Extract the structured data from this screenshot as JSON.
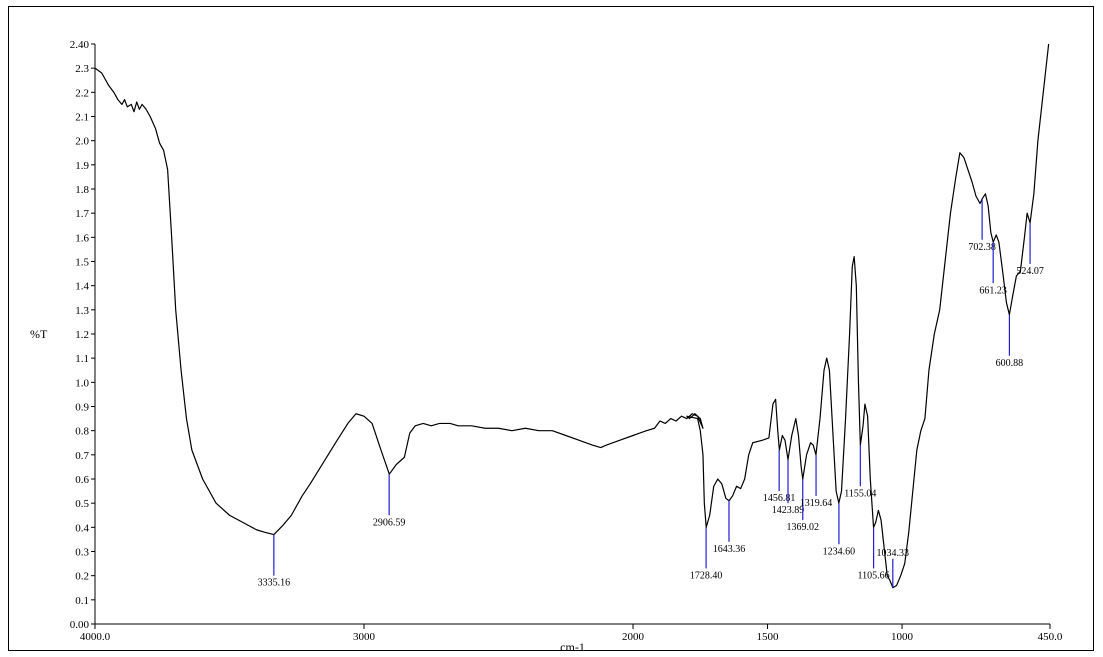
{
  "chart_data": {
    "type": "line",
    "xlabel": "cm-1",
    "ylabel": "%T",
    "xlim": [
      4000,
      450
    ],
    "ylim": [
      0,
      2.4
    ],
    "x_ticks": [
      {
        "value": 4000,
        "label": "4000.0"
      },
      {
        "value": 3000,
        "label": "3000"
      },
      {
        "value": 2000,
        "label": "2000"
      },
      {
        "value": 1500,
        "label": "1500"
      },
      {
        "value": 1000,
        "label": "1000"
      },
      {
        "value": 450,
        "label": "450.0"
      }
    ],
    "y_ticks": [
      {
        "value": 0.0,
        "label": "0.00"
      },
      {
        "value": 0.1,
        "label": "0.1"
      },
      {
        "value": 0.2,
        "label": "0.2"
      },
      {
        "value": 0.3,
        "label": "0.3"
      },
      {
        "value": 0.4,
        "label": "0.4"
      },
      {
        "value": 0.5,
        "label": "0.5"
      },
      {
        "value": 0.6,
        "label": "0.6"
      },
      {
        "value": 0.7,
        "label": "0.7"
      },
      {
        "value": 0.8,
        "label": "0.8"
      },
      {
        "value": 0.9,
        "label": "0.9"
      },
      {
        "value": 1.0,
        "label": "1.0"
      },
      {
        "value": 1.1,
        "label": "1.1"
      },
      {
        "value": 1.2,
        "label": "1.2"
      },
      {
        "value": 1.3,
        "label": "1.3"
      },
      {
        "value": 1.4,
        "label": "1.4"
      },
      {
        "value": 1.5,
        "label": "1.5"
      },
      {
        "value": 1.6,
        "label": "1.6"
      },
      {
        "value": 1.7,
        "label": "1.7"
      },
      {
        "value": 1.8,
        "label": "1.8"
      },
      {
        "value": 1.9,
        "label": "1.9"
      },
      {
        "value": 2.0,
        "label": "2.0"
      },
      {
        "value": 2.1,
        "label": "2.1"
      },
      {
        "value": 2.2,
        "label": "2.2"
      },
      {
        "value": 2.3,
        "label": "2.3"
      },
      {
        "value": 2.4,
        "label": "2.40"
      }
    ],
    "series": [
      {
        "color": "#000000",
        "points": [
          [
            4000,
            2.3
          ],
          [
            3975,
            2.28
          ],
          [
            3950,
            2.23
          ],
          [
            3930,
            2.2
          ],
          [
            3915,
            2.17
          ],
          [
            3900,
            2.15
          ],
          [
            3890,
            2.17
          ],
          [
            3880,
            2.14
          ],
          [
            3865,
            2.15
          ],
          [
            3855,
            2.12
          ],
          [
            3845,
            2.16
          ],
          [
            3835,
            2.13
          ],
          [
            3825,
            2.15
          ],
          [
            3810,
            2.13
          ],
          [
            3795,
            2.1
          ],
          [
            3775,
            2.05
          ],
          [
            3760,
            1.99
          ],
          [
            3745,
            1.96
          ],
          [
            3730,
            1.88
          ],
          [
            3715,
            1.6
          ],
          [
            3700,
            1.3
          ],
          [
            3680,
            1.05
          ],
          [
            3660,
            0.85
          ],
          [
            3640,
            0.72
          ],
          [
            3600,
            0.6
          ],
          [
            3550,
            0.5
          ],
          [
            3500,
            0.45
          ],
          [
            3450,
            0.42
          ],
          [
            3400,
            0.39
          ],
          [
            3370,
            0.38
          ],
          [
            3335,
            0.37
          ],
          [
            3300,
            0.41
          ],
          [
            3270,
            0.45
          ],
          [
            3230,
            0.53
          ],
          [
            3200,
            0.58
          ],
          [
            3150,
            0.67
          ],
          [
            3100,
            0.76
          ],
          [
            3060,
            0.83
          ],
          [
            3030,
            0.87
          ],
          [
            3000,
            0.86
          ],
          [
            2970,
            0.83
          ],
          [
            2940,
            0.73
          ],
          [
            2906,
            0.62
          ],
          [
            2880,
            0.66
          ],
          [
            2850,
            0.69
          ],
          [
            2830,
            0.79
          ],
          [
            2810,
            0.82
          ],
          [
            2780,
            0.83
          ],
          [
            2750,
            0.82
          ],
          [
            2720,
            0.83
          ],
          [
            2680,
            0.83
          ],
          [
            2650,
            0.82
          ],
          [
            2600,
            0.82
          ],
          [
            2550,
            0.81
          ],
          [
            2500,
            0.81
          ],
          [
            2450,
            0.8
          ],
          [
            2400,
            0.81
          ],
          [
            2350,
            0.8
          ],
          [
            2300,
            0.8
          ],
          [
            2250,
            0.78
          ],
          [
            2200,
            0.76
          ],
          [
            2150,
            0.74
          ],
          [
            2120,
            0.73
          ],
          [
            2100,
            0.74
          ],
          [
            2050,
            0.76
          ],
          [
            2000,
            0.78
          ],
          [
            1950,
            0.8
          ],
          [
            1920,
            0.81
          ],
          [
            1900,
            0.84
          ],
          [
            1880,
            0.83
          ],
          [
            1860,
            0.85
          ],
          [
            1840,
            0.84
          ],
          [
            1820,
            0.86
          ],
          [
            1800,
            0.85
          ],
          [
            1780,
            0.87
          ],
          [
            1760,
            0.86
          ],
          [
            1750,
            0.85
          ],
          [
            1740,
            0.81
          ],
          [
            1760,
            0.86
          ],
          [
            1770,
            0.87
          ],
          [
            1780,
            0.86
          ],
          [
            1790,
            0.85
          ],
          [
            1800,
            0.86
          ],
          [
            1760,
            0.85
          ],
          [
            1750,
            0.8
          ],
          [
            1740,
            0.7
          ],
          [
            1735,
            0.5
          ],
          [
            1728,
            0.4
          ],
          [
            1715,
            0.45
          ],
          [
            1700,
            0.57
          ],
          [
            1685,
            0.6
          ],
          [
            1670,
            0.58
          ],
          [
            1655,
            0.52
          ],
          [
            1643,
            0.51
          ],
          [
            1630,
            0.53
          ],
          [
            1615,
            0.57
          ],
          [
            1600,
            0.56
          ],
          [
            1585,
            0.6
          ],
          [
            1570,
            0.7
          ],
          [
            1555,
            0.75
          ],
          [
            1520,
            0.76
          ],
          [
            1495,
            0.77
          ],
          [
            1480,
            0.91
          ],
          [
            1470,
            0.93
          ],
          [
            1462,
            0.8
          ],
          [
            1456,
            0.72
          ],
          [
            1445,
            0.78
          ],
          [
            1435,
            0.76
          ],
          [
            1424,
            0.68
          ],
          [
            1410,
            0.78
          ],
          [
            1395,
            0.85
          ],
          [
            1385,
            0.78
          ],
          [
            1375,
            0.65
          ],
          [
            1369,
            0.6
          ],
          [
            1355,
            0.7
          ],
          [
            1340,
            0.75
          ],
          [
            1330,
            0.74
          ],
          [
            1320,
            0.7
          ],
          [
            1305,
            0.85
          ],
          [
            1290,
            1.05
          ],
          [
            1280,
            1.1
          ],
          [
            1270,
            1.05
          ],
          [
            1255,
            0.75
          ],
          [
            1245,
            0.55
          ],
          [
            1235,
            0.5
          ],
          [
            1225,
            0.55
          ],
          [
            1210,
            0.85
          ],
          [
            1195,
            1.2
          ],
          [
            1185,
            1.48
          ],
          [
            1178,
            1.52
          ],
          [
            1170,
            1.4
          ],
          [
            1162,
            1.0
          ],
          [
            1155,
            0.74
          ],
          [
            1145,
            0.82
          ],
          [
            1138,
            0.91
          ],
          [
            1128,
            0.86
          ],
          [
            1118,
            0.6
          ],
          [
            1106,
            0.4
          ],
          [
            1098,
            0.42
          ],
          [
            1088,
            0.47
          ],
          [
            1078,
            0.43
          ],
          [
            1065,
            0.3
          ],
          [
            1055,
            0.2
          ],
          [
            1045,
            0.18
          ],
          [
            1034,
            0.15
          ],
          [
            1020,
            0.16
          ],
          [
            1005,
            0.2
          ],
          [
            990,
            0.25
          ],
          [
            975,
            0.38
          ],
          [
            960,
            0.55
          ],
          [
            945,
            0.72
          ],
          [
            930,
            0.8
          ],
          [
            915,
            0.85
          ],
          [
            900,
            1.05
          ],
          [
            880,
            1.2
          ],
          [
            860,
            1.3
          ],
          [
            840,
            1.5
          ],
          [
            820,
            1.7
          ],
          [
            800,
            1.85
          ],
          [
            785,
            1.95
          ],
          [
            770,
            1.93
          ],
          [
            755,
            1.88
          ],
          [
            740,
            1.83
          ],
          [
            725,
            1.77
          ],
          [
            710,
            1.74
          ],
          [
            702,
            1.76
          ],
          [
            690,
            1.78
          ],
          [
            680,
            1.73
          ],
          [
            670,
            1.62
          ],
          [
            661,
            1.58
          ],
          [
            650,
            1.61
          ],
          [
            640,
            1.58
          ],
          [
            625,
            1.45
          ],
          [
            612,
            1.33
          ],
          [
            601,
            1.28
          ],
          [
            590,
            1.35
          ],
          [
            575,
            1.44
          ],
          [
            560,
            1.46
          ],
          [
            545,
            1.6
          ],
          [
            535,
            1.7
          ],
          [
            524,
            1.66
          ],
          [
            510,
            1.78
          ],
          [
            495,
            2.0
          ],
          [
            480,
            2.15
          ],
          [
            465,
            2.3
          ],
          [
            455,
            2.4
          ]
        ]
      }
    ],
    "annotations": [
      {
        "x": 3335.16,
        "y": 0.37,
        "label": "3335.16",
        "label_y": 0.2
      },
      {
        "x": 2906.59,
        "y": 0.62,
        "label": "2906.59",
        "label_y": 0.45
      },
      {
        "x": 1728.4,
        "y": 0.4,
        "label": "1728.40",
        "label_y": 0.23
      },
      {
        "x": 1643.36,
        "y": 0.51,
        "label": "1643.36",
        "label_y": 0.34
      },
      {
        "x": 1456.81,
        "y": 0.72,
        "label": "1456.81",
        "label_y": 0.55
      },
      {
        "x": 1423.89,
        "y": 0.68,
        "label": "1423.89",
        "label_y": 0.5
      },
      {
        "x": 1369.02,
        "y": 0.6,
        "label": "1369.02",
        "label_y": 0.43
      },
      {
        "x": 1319.64,
        "y": 0.7,
        "label": "1319.64",
        "label_y": 0.53
      },
      {
        "x": 1234.6,
        "y": 0.5,
        "label": "1234.60",
        "label_y": 0.33
      },
      {
        "x": 1155.04,
        "y": 0.74,
        "label": "1155.04",
        "label_y": 0.57
      },
      {
        "x": 1105.66,
        "y": 0.4,
        "label": "1105.66",
        "label_y": 0.23
      },
      {
        "x": 1034.33,
        "y": 0.15,
        "label": "1034.33",
        "label_y": 0.27
      },
      {
        "x": 702.38,
        "y": 1.76,
        "label": "702.38",
        "label_y": 1.59
      },
      {
        "x": 661.23,
        "y": 1.58,
        "label": "661.23",
        "label_y": 1.41
      },
      {
        "x": 600.88,
        "y": 1.28,
        "label": "600.88",
        "label_y": 1.11
      },
      {
        "x": 524.07,
        "y": 1.66,
        "label": "524.07",
        "label_y": 1.49
      }
    ],
    "grid": false,
    "legend": "none"
  }
}
